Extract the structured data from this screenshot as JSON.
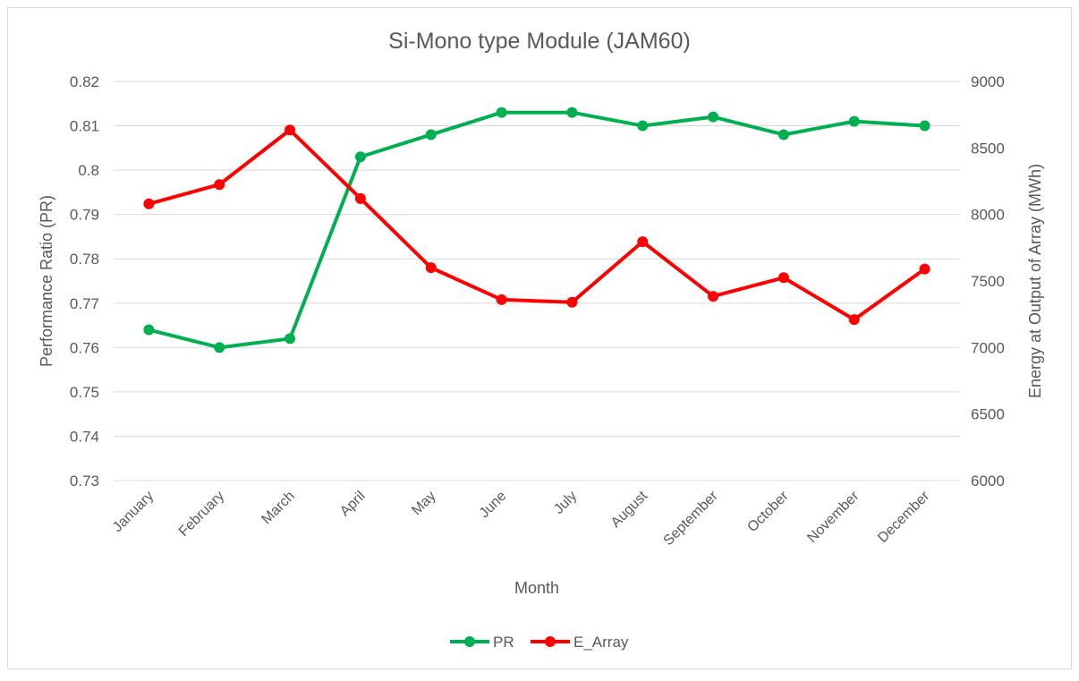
{
  "chart_data": {
    "type": "line",
    "title": "Si-Mono type Module (JAM60)",
    "xlabel": "Month",
    "ylabel": "Performance Ratio (PR)",
    "y2label": "Energy at Output of Array (MWh)",
    "categories": [
      "January",
      "February",
      "March",
      "April",
      "May",
      "June",
      "July",
      "August",
      "September",
      "October",
      "November",
      "December"
    ],
    "ylim": [
      0.73,
      0.82
    ],
    "yticks": [
      "0.73",
      "0.74",
      "0.75",
      "0.76",
      "0.77",
      "0.78",
      "0.79",
      "0.8",
      "0.81",
      "0.82"
    ],
    "y2lim": [
      6000,
      9000
    ],
    "y2ticks": [
      "6000",
      "6500",
      "7000",
      "7500",
      "8000",
      "8500",
      "9000"
    ],
    "grid": true,
    "legend_position": "bottom",
    "series": [
      {
        "name": "PR",
        "axis": "left",
        "color": "#00b050",
        "values": [
          0.764,
          0.76,
          0.762,
          0.803,
          0.808,
          0.813,
          0.813,
          0.81,
          0.812,
          0.808,
          0.811,
          0.81
        ]
      },
      {
        "name": "E_Array",
        "axis": "right",
        "color": "#ff0000",
        "values": [
          8080,
          8225,
          8635,
          8120,
          7600,
          7360,
          7340,
          7795,
          7385,
          7525,
          7210,
          7590
        ]
      }
    ]
  }
}
